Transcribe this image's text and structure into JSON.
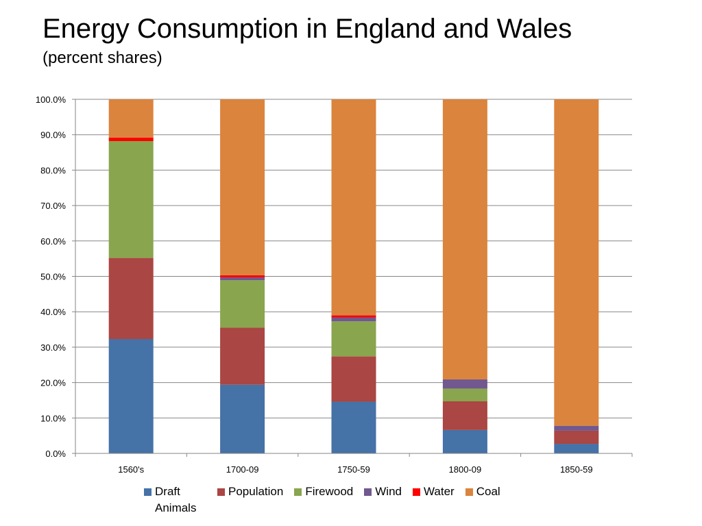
{
  "title": "Energy Consumption in England and Wales",
  "subtitle": "(percent shares)",
  "chart_data": {
    "type": "bar",
    "stacked": true,
    "categories": [
      "1560's",
      "1700-09",
      "1750-59",
      "1800-09",
      "1850-59"
    ],
    "ylim": [
      0,
      100
    ],
    "yticks": [
      "0.0%",
      "10.0%",
      "20.0%",
      "30.0%",
      "40.0%",
      "50.0%",
      "60.0%",
      "70.0%",
      "80.0%",
      "90.0%",
      "100.0%"
    ],
    "grid": true,
    "legend_position": "bottom",
    "series": [
      {
        "name": "Draft Animals",
        "color": "#4572A7",
        "values": [
          32.3,
          19.4,
          14.6,
          6.6,
          2.7
        ]
      },
      {
        "name": "Population",
        "color": "#AA4643",
        "values": [
          22.9,
          16.1,
          12.8,
          8.1,
          3.7
        ]
      },
      {
        "name": "Firewood",
        "color": "#89A54E",
        "values": [
          33.0,
          13.4,
          9.9,
          3.6,
          0.0
        ]
      },
      {
        "name": "Wind",
        "color": "#71588F",
        "values": [
          0.0,
          0.8,
          1.1,
          2.6,
          1.4
        ]
      },
      {
        "name": "Water",
        "color": "#FF0000",
        "values": [
          1.0,
          0.6,
          0.6,
          0.0,
          0.0
        ]
      },
      {
        "name": "Coal",
        "color": "#DB843D",
        "values": [
          10.8,
          49.7,
          61.0,
          79.1,
          92.2
        ]
      }
    ]
  }
}
